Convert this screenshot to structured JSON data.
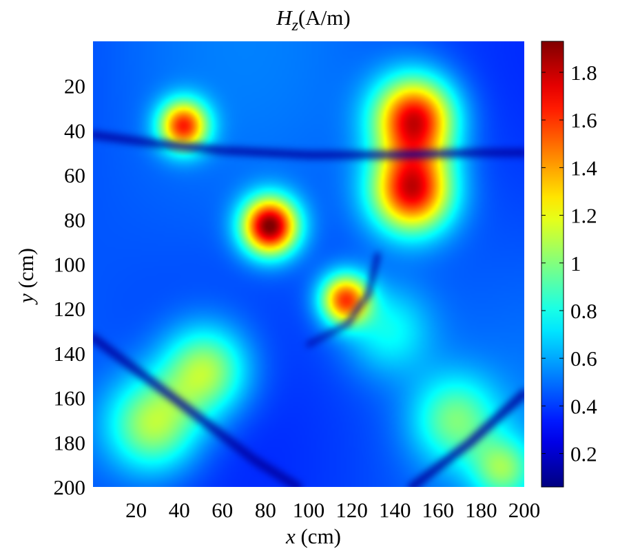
{
  "chart_data": {
    "type": "heatmap",
    "title": {
      "symbol": "H",
      "subscript": "z",
      "unit": "(A/m)"
    },
    "xlabel": {
      "symbol": "x",
      "unit": "(cm)"
    },
    "ylabel": {
      "symbol": "y",
      "unit": "(cm)"
    },
    "xlim": [
      0,
      200
    ],
    "ylim": [
      0,
      200
    ],
    "y_axis_reversed": true,
    "x_ticks": [
      20,
      40,
      60,
      80,
      100,
      120,
      140,
      160,
      180,
      200
    ],
    "y_ticks": [
      20,
      40,
      60,
      80,
      100,
      120,
      140,
      160,
      180,
      200
    ],
    "colormap": "jet",
    "colorbar": {
      "range": [
        0.06,
        1.93
      ],
      "ticks": [
        0.2,
        0.4,
        0.6,
        0.8,
        1,
        1.2,
        1.4,
        1.6,
        1.8
      ],
      "tick_labels": [
        "0.2",
        "0.4",
        "0.6",
        "0.8",
        "1",
        "1.2",
        "1.4",
        "1.6",
        "1.8"
      ]
    },
    "base_level": 0.45,
    "hotspots": [
      {
        "x": 42,
        "y": 38,
        "peak": 1.6,
        "sigma": 8
      },
      {
        "x": 149,
        "y": 35,
        "peak": 1.75,
        "sigma": 13
      },
      {
        "x": 148,
        "y": 67,
        "peak": 1.75,
        "sigma": 13
      },
      {
        "x": 82,
        "y": 83,
        "peak": 1.93,
        "sigma": 9
      },
      {
        "x": 117,
        "y": 116,
        "peak": 1.55,
        "sigma": 8
      },
      {
        "x": 52,
        "y": 148,
        "peak": 1.12,
        "sigma": 14
      },
      {
        "x": 28,
        "y": 172,
        "peak": 1.12,
        "sigma": 15
      },
      {
        "x": 168,
        "y": 170,
        "peak": 0.95,
        "sigma": 14
      },
      {
        "x": 190,
        "y": 192,
        "peak": 0.95,
        "sigma": 10
      },
      {
        "x": 137,
        "y": 130,
        "peak": 0.78,
        "sigma": 14
      }
    ],
    "null_lines": [
      {
        "kind": "curve",
        "points": [
          [
            0,
            42
          ],
          [
            30,
            46
          ],
          [
            60,
            49
          ],
          [
            100,
            51
          ],
          [
            140,
            51
          ],
          [
            180,
            50
          ],
          [
            200,
            50
          ]
        ],
        "width": 3.5
      },
      {
        "kind": "curve",
        "points": [
          [
            0,
            133
          ],
          [
            40,
            162
          ],
          [
            75,
            188
          ],
          [
            95,
            200
          ]
        ],
        "width": 4
      },
      {
        "kind": "curve",
        "points": [
          [
            148,
            200
          ],
          [
            175,
            180
          ],
          [
            200,
            158
          ]
        ],
        "width": 4
      },
      {
        "kind": "curve",
        "points": [
          [
            132,
            96
          ],
          [
            128,
            113
          ],
          [
            118,
            127
          ],
          [
            100,
            136
          ]
        ],
        "width": 2.5
      }
    ]
  }
}
